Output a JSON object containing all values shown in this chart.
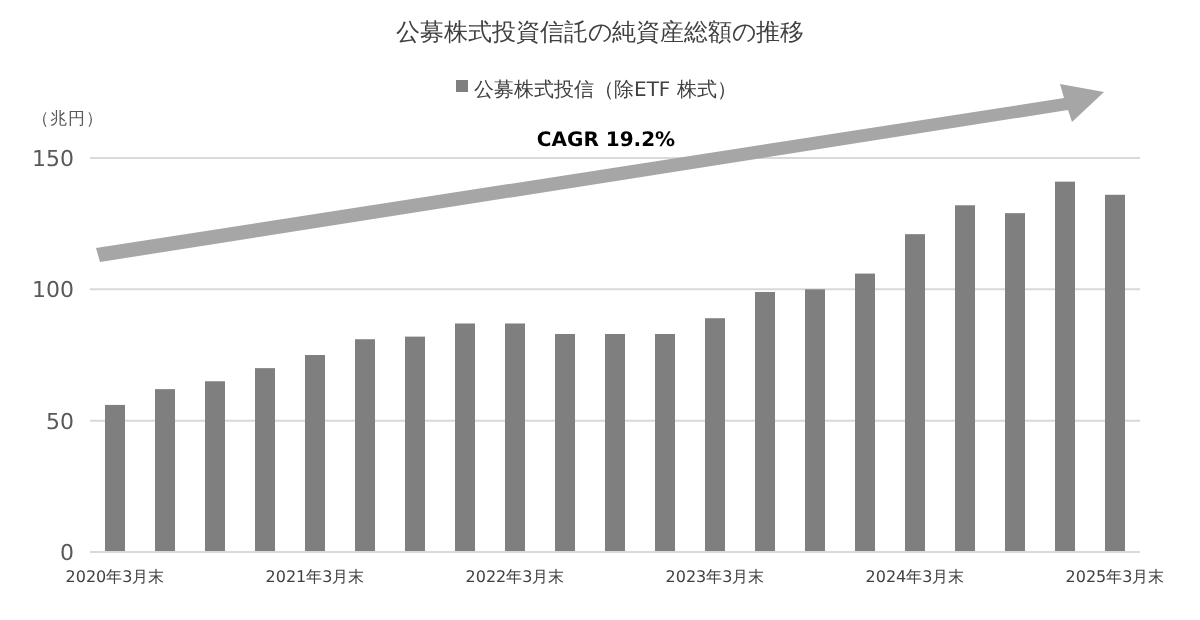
{
  "chart_data": {
    "type": "bar",
    "title": "公募株式投資信託の純資産総額の推移",
    "ylabel": "（兆円）",
    "categories": [
      "2020年3月末",
      null,
      null,
      null,
      "2021年3月末",
      null,
      null,
      null,
      "2022年3月末",
      null,
      null,
      null,
      "2023年3月末",
      null,
      null,
      null,
      "2024年3月末",
      null,
      null,
      null,
      "2025年3月末"
    ],
    "series": [
      {
        "name": "公募株式投信（除ETF 株式）",
        "color": "#7f7f7f",
        "values": [
          56,
          62,
          65,
          70,
          75,
          81,
          82,
          87,
          87,
          83,
          83,
          83,
          89,
          99,
          100,
          106,
          121,
          132,
          129,
          141,
          136
        ]
      }
    ],
    "ylim": [
      0,
      150
    ],
    "yticks": [
      0,
      50,
      100,
      150
    ],
    "grid": "y",
    "legend": "top",
    "annotations": [
      "CAGR 19.2%"
    ]
  }
}
